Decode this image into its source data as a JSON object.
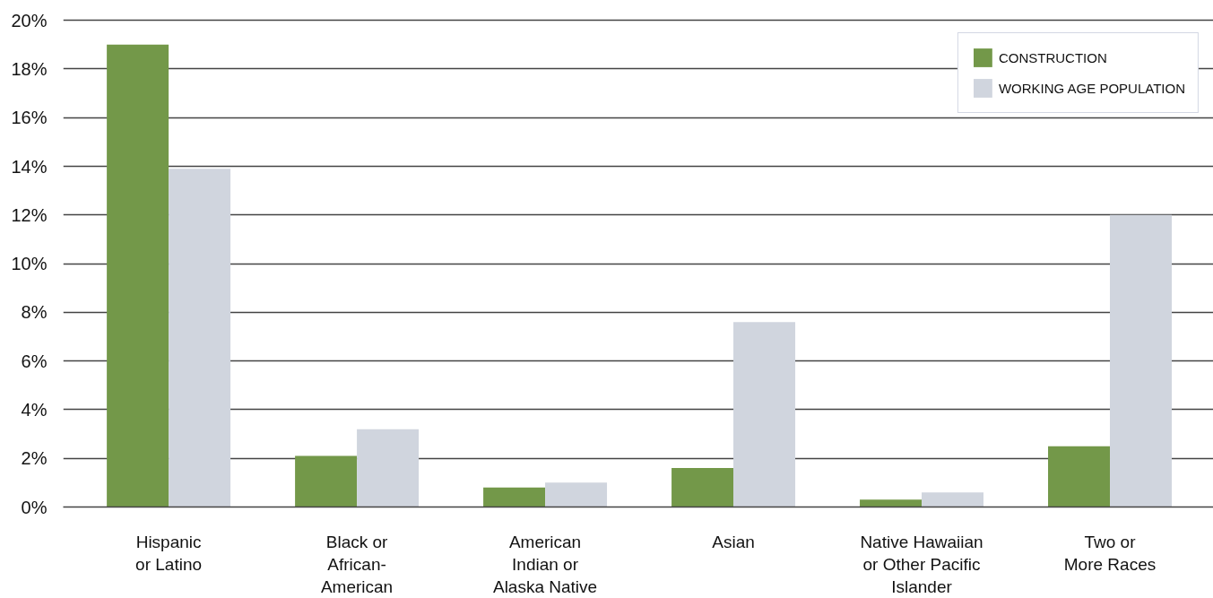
{
  "chart_data": {
    "type": "bar",
    "categories": [
      "Hispanic\nor Latino",
      "Black or\nAfrican-\nAmerican",
      "American\nIndian or\nAlaska Native",
      "Asian",
      "Native Hawaiian\nor Other Pacific\nIslander",
      "Two or\nMore Races"
    ],
    "series": [
      {
        "name": "CONSTRUCTION",
        "color": "#739849",
        "values": [
          19.0,
          2.1,
          0.8,
          1.6,
          0.3,
          2.5
        ]
      },
      {
        "name": "WORKING AGE POPULATION",
        "color": "#d0d5de",
        "values": [
          13.9,
          3.2,
          1.0,
          7.6,
          0.6,
          12.0
        ]
      }
    ],
    "ylim": [
      0,
      20
    ],
    "yticks": [
      {
        "value": 0,
        "label": "0%"
      },
      {
        "value": 2,
        "label": "2%"
      },
      {
        "value": 4,
        "label": "4%"
      },
      {
        "value": 6,
        "label": "6%"
      },
      {
        "value": 8,
        "label": "8%"
      },
      {
        "value": 10,
        "label": "10%"
      },
      {
        "value": 12,
        "label": "12%"
      },
      {
        "value": 14,
        "label": "14%"
      },
      {
        "value": 16,
        "label": "16%"
      },
      {
        "value": 18,
        "label": "18%"
      },
      {
        "value": 20,
        "label": "20%"
      }
    ],
    "grid": "y",
    "legend": "top right"
  }
}
